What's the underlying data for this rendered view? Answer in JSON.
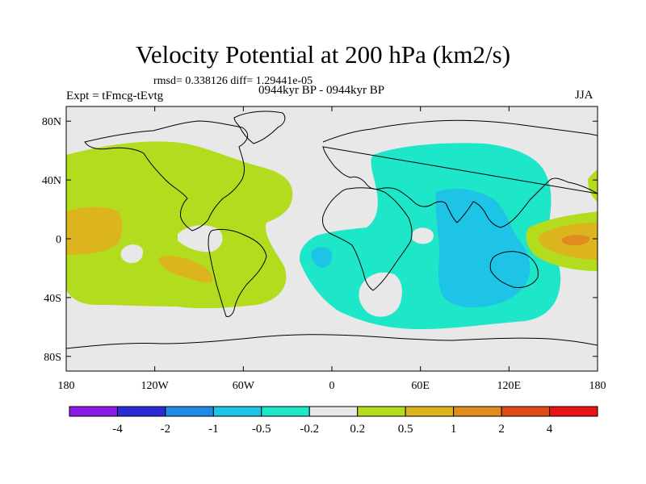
{
  "map": {
    "title": "Velocity Potential at 200 hPa (km2/s)",
    "stats_line": "rmsd= 0.338126 diff= 1.29441e-05",
    "experiment": "Expt = tFmcg-tEvtg",
    "period": "0944kyr BP - 0944kyr BP",
    "season": "JJA",
    "projection": "cylindrical equidistant",
    "lon_range": [
      -180,
      180
    ],
    "lat_range": [
      -90,
      90
    ],
    "lon_tick_values": [
      -180,
      -120,
      -60,
      0,
      60,
      120,
      180
    ],
    "lat_tick_values": [
      80,
      40,
      0,
      -40,
      -80
    ],
    "lon_tick_labels": [
      "180",
      "120W",
      "60W",
      "0",
      "60E",
      "120E",
      "180"
    ],
    "lat_tick_labels": [
      "80N",
      "40N",
      "0",
      "40S",
      "80S"
    ]
  },
  "colorbar": {
    "colors": [
      "#8a1be6",
      "#2b2bd4",
      "#1e8ce6",
      "#1ec4e6",
      "#1ee6c8",
      "#e8e8e8",
      "#b4dc1e",
      "#dcb41e",
      "#e08c1e",
      "#e04a14",
      "#e61414"
    ],
    "labels": [
      "-4",
      "-2",
      "-1",
      "-0.5",
      "-0.2",
      "0.2",
      "0.5",
      "1",
      "2",
      "4"
    ]
  },
  "field_regions": [
    {
      "name": "west-pacific-americas-positive",
      "level": "0.2 to 0.5",
      "color": "#b4dc1e"
    },
    {
      "name": "east-pacific-max",
      "level": "0.5 to 1",
      "color": "#dcb41e"
    },
    {
      "name": "south-atlantic-max",
      "level": "0.5 to 1",
      "color": "#dcb41e"
    },
    {
      "name": "indian-ocean-negative",
      "level": "-0.5 to -0.2",
      "color": "#1ee6c8"
    },
    {
      "name": "maritime-continent-min",
      "level": "-1 to -0.5",
      "color": "#1ec4e6"
    },
    {
      "name": "west-pacific-positive",
      "level": "0.2 to 0.5",
      "color": "#b4dc1e"
    },
    {
      "name": "dateline-max",
      "level": "0.5 to 1",
      "color": "#dcb41e"
    },
    {
      "name": "dateline-core",
      "level": "1 to 2",
      "color": "#e08c1e"
    }
  ]
}
